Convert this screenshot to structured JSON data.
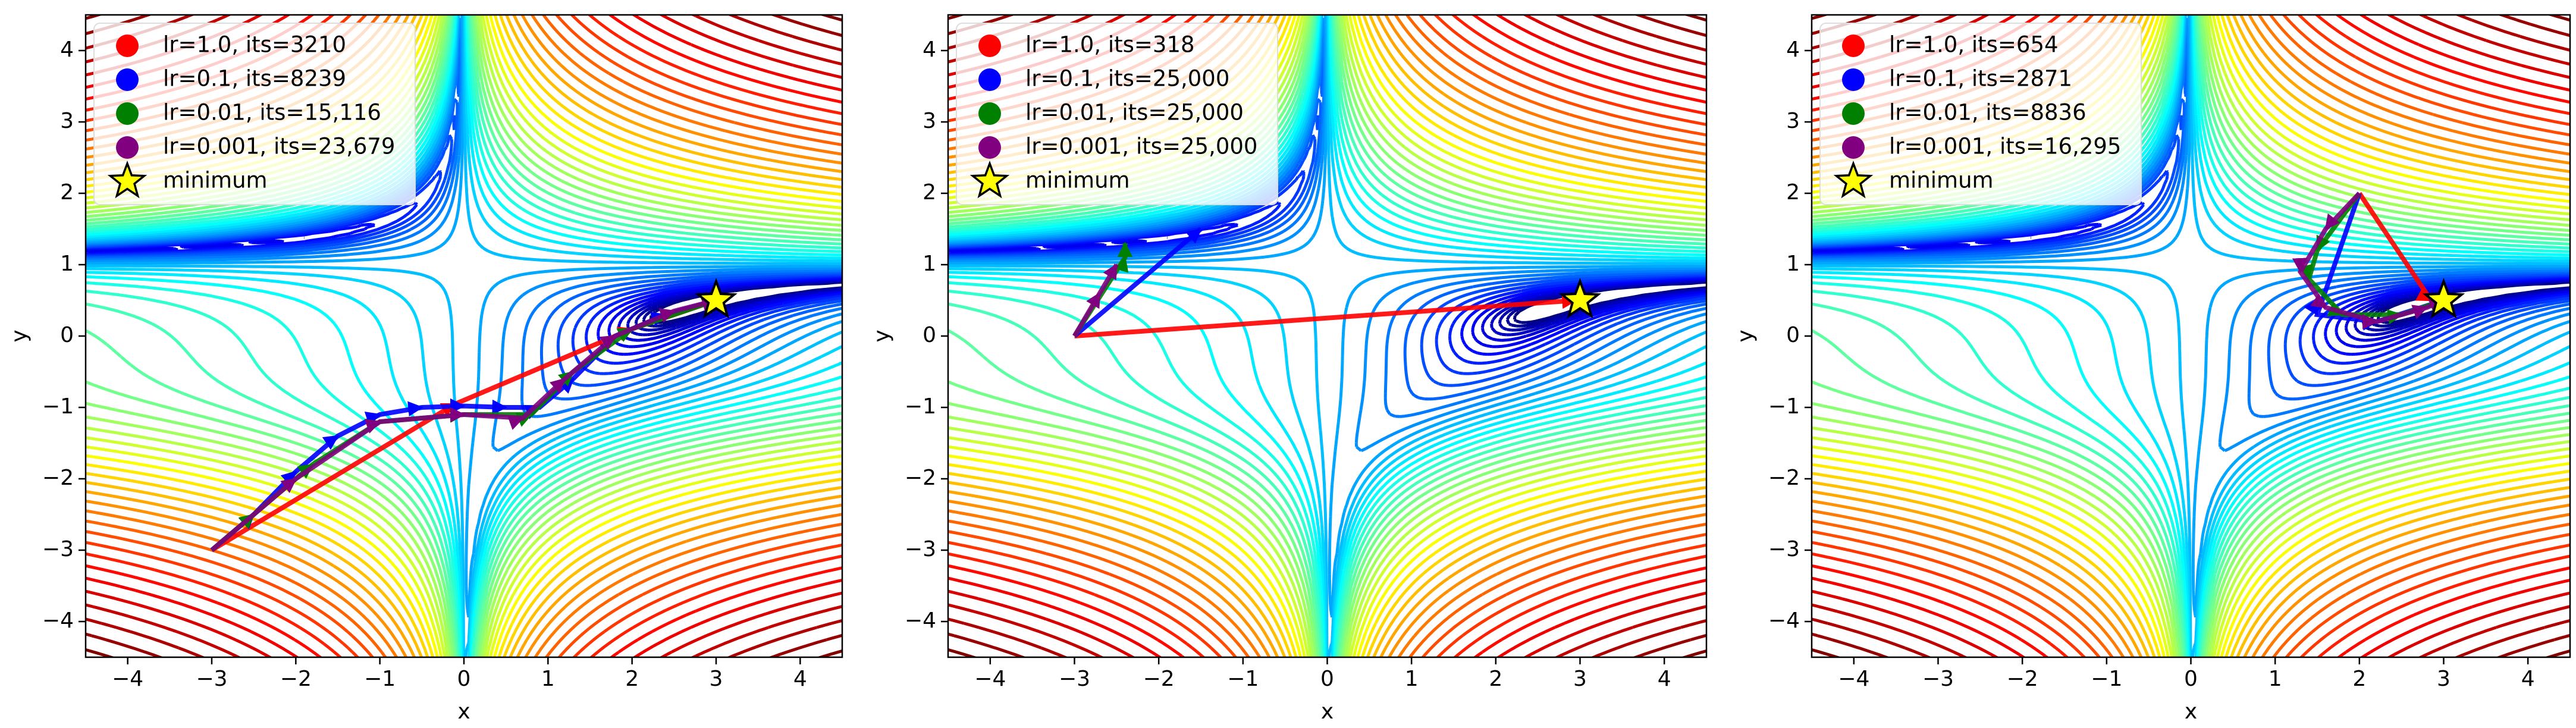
{
  "chart_data": [
    {
      "type": "contour-trajectory",
      "xlabel": "x",
      "ylabel": "y",
      "xlim": [
        -4.5,
        4.5
      ],
      "ylim": [
        -4.5,
        4.5
      ],
      "xticks": [
        {
          "value": -4,
          "label": "−4"
        },
        {
          "value": -3,
          "label": "−3"
        },
        {
          "value": -2,
          "label": "−2"
        },
        {
          "value": -1,
          "label": "−1"
        },
        0,
        1,
        2,
        3,
        4
      ],
      "yticks": [
        {
          "value": -4,
          "label": "−4"
        },
        {
          "value": -3,
          "label": "−3"
        },
        {
          "value": -2,
          "label": "−2"
        },
        {
          "value": -1,
          "label": "−1"
        },
        0,
        1,
        2,
        3,
        4
      ],
      "series": [
        {
          "name": "lr=1.0, its=3210",
          "color": "#ff0000",
          "x": [
            -3,
            -0.1,
            2.0,
            3.0
          ],
          "y": [
            -3,
            -0.95,
            0.1,
            0.5
          ]
        },
        {
          "name": "lr=0.1, its=8239",
          "color": "#0000ff",
          "x": [
            -3,
            -2.5,
            -2.0,
            -1.5,
            -1.0,
            -0.5,
            0.0,
            0.5,
            0.9,
            1.3,
            1.8,
            2.4,
            3.0
          ],
          "y": [
            -3,
            -2.5,
            -1.9,
            -1.4,
            -1.1,
            -1.0,
            -0.98,
            -1.0,
            -1.0,
            -0.6,
            0.0,
            0.3,
            0.5
          ]
        },
        {
          "name": "lr=0.01, its=15,116",
          "color": "#008000",
          "x": [
            -3,
            -2.5,
            -1.8,
            -1.0,
            0.0,
            0.8,
            1.3,
            2.0,
            3.0
          ],
          "y": [
            -3,
            -2.5,
            -1.8,
            -1.2,
            -1.1,
            -1.1,
            -0.5,
            0.1,
            0.5
          ]
        },
        {
          "name": "lr=0.001, its=23,679",
          "color": "#800080",
          "x": [
            -3,
            -2.0,
            -1.0,
            0.0,
            0.7,
            1.2,
            1.8,
            2.5,
            3.0
          ],
          "y": [
            -3,
            -2.0,
            -1.2,
            -1.1,
            -1.15,
            -0.6,
            0.0,
            0.35,
            0.5
          ]
        }
      ],
      "minimum": {
        "label": "minimum",
        "x": 3,
        "y": 0.5
      }
    },
    {
      "type": "contour-trajectory",
      "xlabel": "x",
      "ylabel": "y",
      "xlim": [
        -4.5,
        4.5
      ],
      "ylim": [
        -4.5,
        4.5
      ],
      "xticks": [
        {
          "value": -4,
          "label": "−4"
        },
        {
          "value": -3,
          "label": "−3"
        },
        {
          "value": -2,
          "label": "−2"
        },
        {
          "value": -1,
          "label": "−1"
        },
        0,
        1,
        2,
        3,
        4
      ],
      "yticks": [
        {
          "value": -4,
          "label": "−4"
        },
        {
          "value": -3,
          "label": "−3"
        },
        {
          "value": -2,
          "label": "−2"
        },
        {
          "value": -1,
          "label": "−1"
        },
        0,
        1,
        2,
        3,
        4
      ],
      "series": [
        {
          "name": "lr=1.0, its=318",
          "color": "#ff0000",
          "x": [
            -3,
            2.95
          ],
          "y": [
            0,
            0.5
          ]
        },
        {
          "name": "lr=0.1, its=25,000",
          "color": "#0000ff",
          "x": [
            -3,
            -1.5
          ],
          "y": [
            0,
            1.5
          ]
        },
        {
          "name": "lr=0.01, its=25,000",
          "color": "#008000",
          "x": [
            -3,
            -2.4,
            -2.4
          ],
          "y": [
            0,
            1.1,
            1.3
          ]
        },
        {
          "name": "lr=0.001, its=25,000",
          "color": "#800080",
          "x": [
            -3,
            -2.7,
            -2.5
          ],
          "y": [
            0,
            0.6,
            1.0
          ]
        }
      ],
      "minimum": {
        "label": "minimum",
        "x": 3,
        "y": 0.5
      }
    },
    {
      "type": "contour-trajectory",
      "xlabel": "x",
      "ylabel": "y",
      "xlim": [
        -4.5,
        4.5
      ],
      "ylim": [
        -4.5,
        4.5
      ],
      "xticks": [
        {
          "value": -4,
          "label": "−4"
        },
        {
          "value": -3,
          "label": "−3"
        },
        {
          "value": -2,
          "label": "−2"
        },
        {
          "value": -1,
          "label": "−1"
        },
        0,
        1,
        2,
        3,
        4
      ],
      "yticks": [
        {
          "value": -4,
          "label": "−4"
        },
        {
          "value": -3,
          "label": "−3"
        },
        {
          "value": -2,
          "label": "−2"
        },
        {
          "value": -1,
          "label": "−1"
        },
        0,
        1,
        2,
        3,
        4
      ],
      "series": [
        {
          "name": "lr=1.0, its=654",
          "color": "#ff0000",
          "x": [
            2,
            2.85,
            3.0
          ],
          "y": [
            2,
            0.5,
            0.5
          ]
        },
        {
          "name": "lr=0.1, its=2871",
          "color": "#0000ff",
          "x": [
            2,
            1.5,
            2.2,
            3.0
          ],
          "y": [
            2,
            0.3,
            0.2,
            0.5
          ]
        },
        {
          "name": "lr=0.01, its=8836",
          "color": "#008000",
          "x": [
            2,
            1.5,
            1.4,
            1.8,
            2.5,
            3.0
          ],
          "y": [
            2,
            1.2,
            0.8,
            0.3,
            0.3,
            0.5
          ]
        },
        {
          "name": "lr=0.001, its=16,295",
          "color": "#800080",
          "x": [
            2,
            1.6,
            1.3,
            1.6,
            2.2,
            2.8,
            3.0
          ],
          "y": [
            2,
            1.5,
            0.9,
            0.4,
            0.2,
            0.4,
            0.5
          ]
        }
      ],
      "minimum": {
        "label": "minimum",
        "x": 3,
        "y": 0.5
      }
    }
  ]
}
